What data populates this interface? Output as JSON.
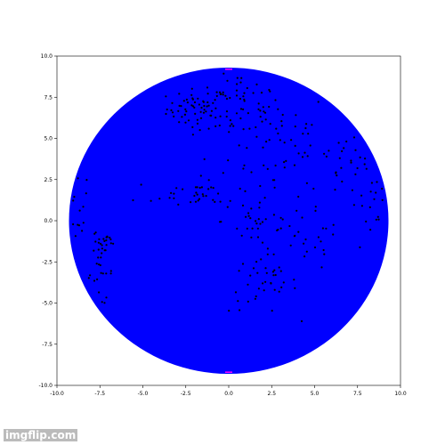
{
  "chart_data": {
    "type": "scatter",
    "title": "",
    "xlabel": "",
    "ylabel": "",
    "xlim": [
      -10.0,
      10.0
    ],
    "ylim": [
      -10.0,
      10.0
    ],
    "grid": false,
    "xticks": [
      "-10.0",
      "-7.5",
      "-5.0",
      "-2.5",
      "0.0",
      "2.5",
      "5.0",
      "7.5",
      "10.0"
    ],
    "yticks": [
      "10.0",
      "7.5",
      "5.0",
      "2.5",
      "0.0",
      "-2.5",
      "-5.0",
      "-7.5",
      "-10.0"
    ],
    "disk": {
      "center": [
        0,
        0
      ],
      "radius": 9.3,
      "color": "#0000ff"
    },
    "markers": {
      "color": "#ff00ff",
      "points": [
        [
          0,
          9.2
        ],
        [
          0,
          -9.2
        ]
      ]
    },
    "point_color": "#000000",
    "clusters": [
      {
        "cx": -1.8,
        "cy": 6.8,
        "sx": 0.9,
        "sy": 0.6,
        "n": 60
      },
      {
        "cx": 0.6,
        "cy": 7.0,
        "sx": 1.2,
        "sy": 1.0,
        "n": 55
      },
      {
        "cx": 2.5,
        "cy": 5.0,
        "sx": 1.8,
        "sy": 1.5,
        "n": 45
      },
      {
        "cx": 6.5,
        "cy": 3.6,
        "sx": 1.4,
        "sy": 1.3,
        "n": 35
      },
      {
        "cx": -1.5,
        "cy": 1.6,
        "sx": 2.0,
        "sy": 0.5,
        "n": 45
      },
      {
        "cx": -8.8,
        "cy": 1.2,
        "sx": 0.3,
        "sy": 1.5,
        "n": 22
      },
      {
        "cx": -7.2,
        "cy": -1.3,
        "sx": 0.35,
        "sy": 0.4,
        "n": 20
      },
      {
        "cx": -7.5,
        "cy": -3.2,
        "sx": 0.4,
        "sy": 1.0,
        "n": 25
      },
      {
        "cx": 2.0,
        "cy": -3.8,
        "sx": 1.0,
        "sy": 0.9,
        "n": 40
      },
      {
        "cx": 1.8,
        "cy": 0.0,
        "sx": 1.1,
        "sy": 0.9,
        "n": 30
      },
      {
        "cx": 4.5,
        "cy": -1.5,
        "sx": 1.0,
        "sy": 0.8,
        "n": 20
      },
      {
        "cx": 8.2,
        "cy": 0.6,
        "sx": 0.6,
        "sy": 1.5,
        "n": 20
      }
    ]
  },
  "watermark": "imgflip.com"
}
